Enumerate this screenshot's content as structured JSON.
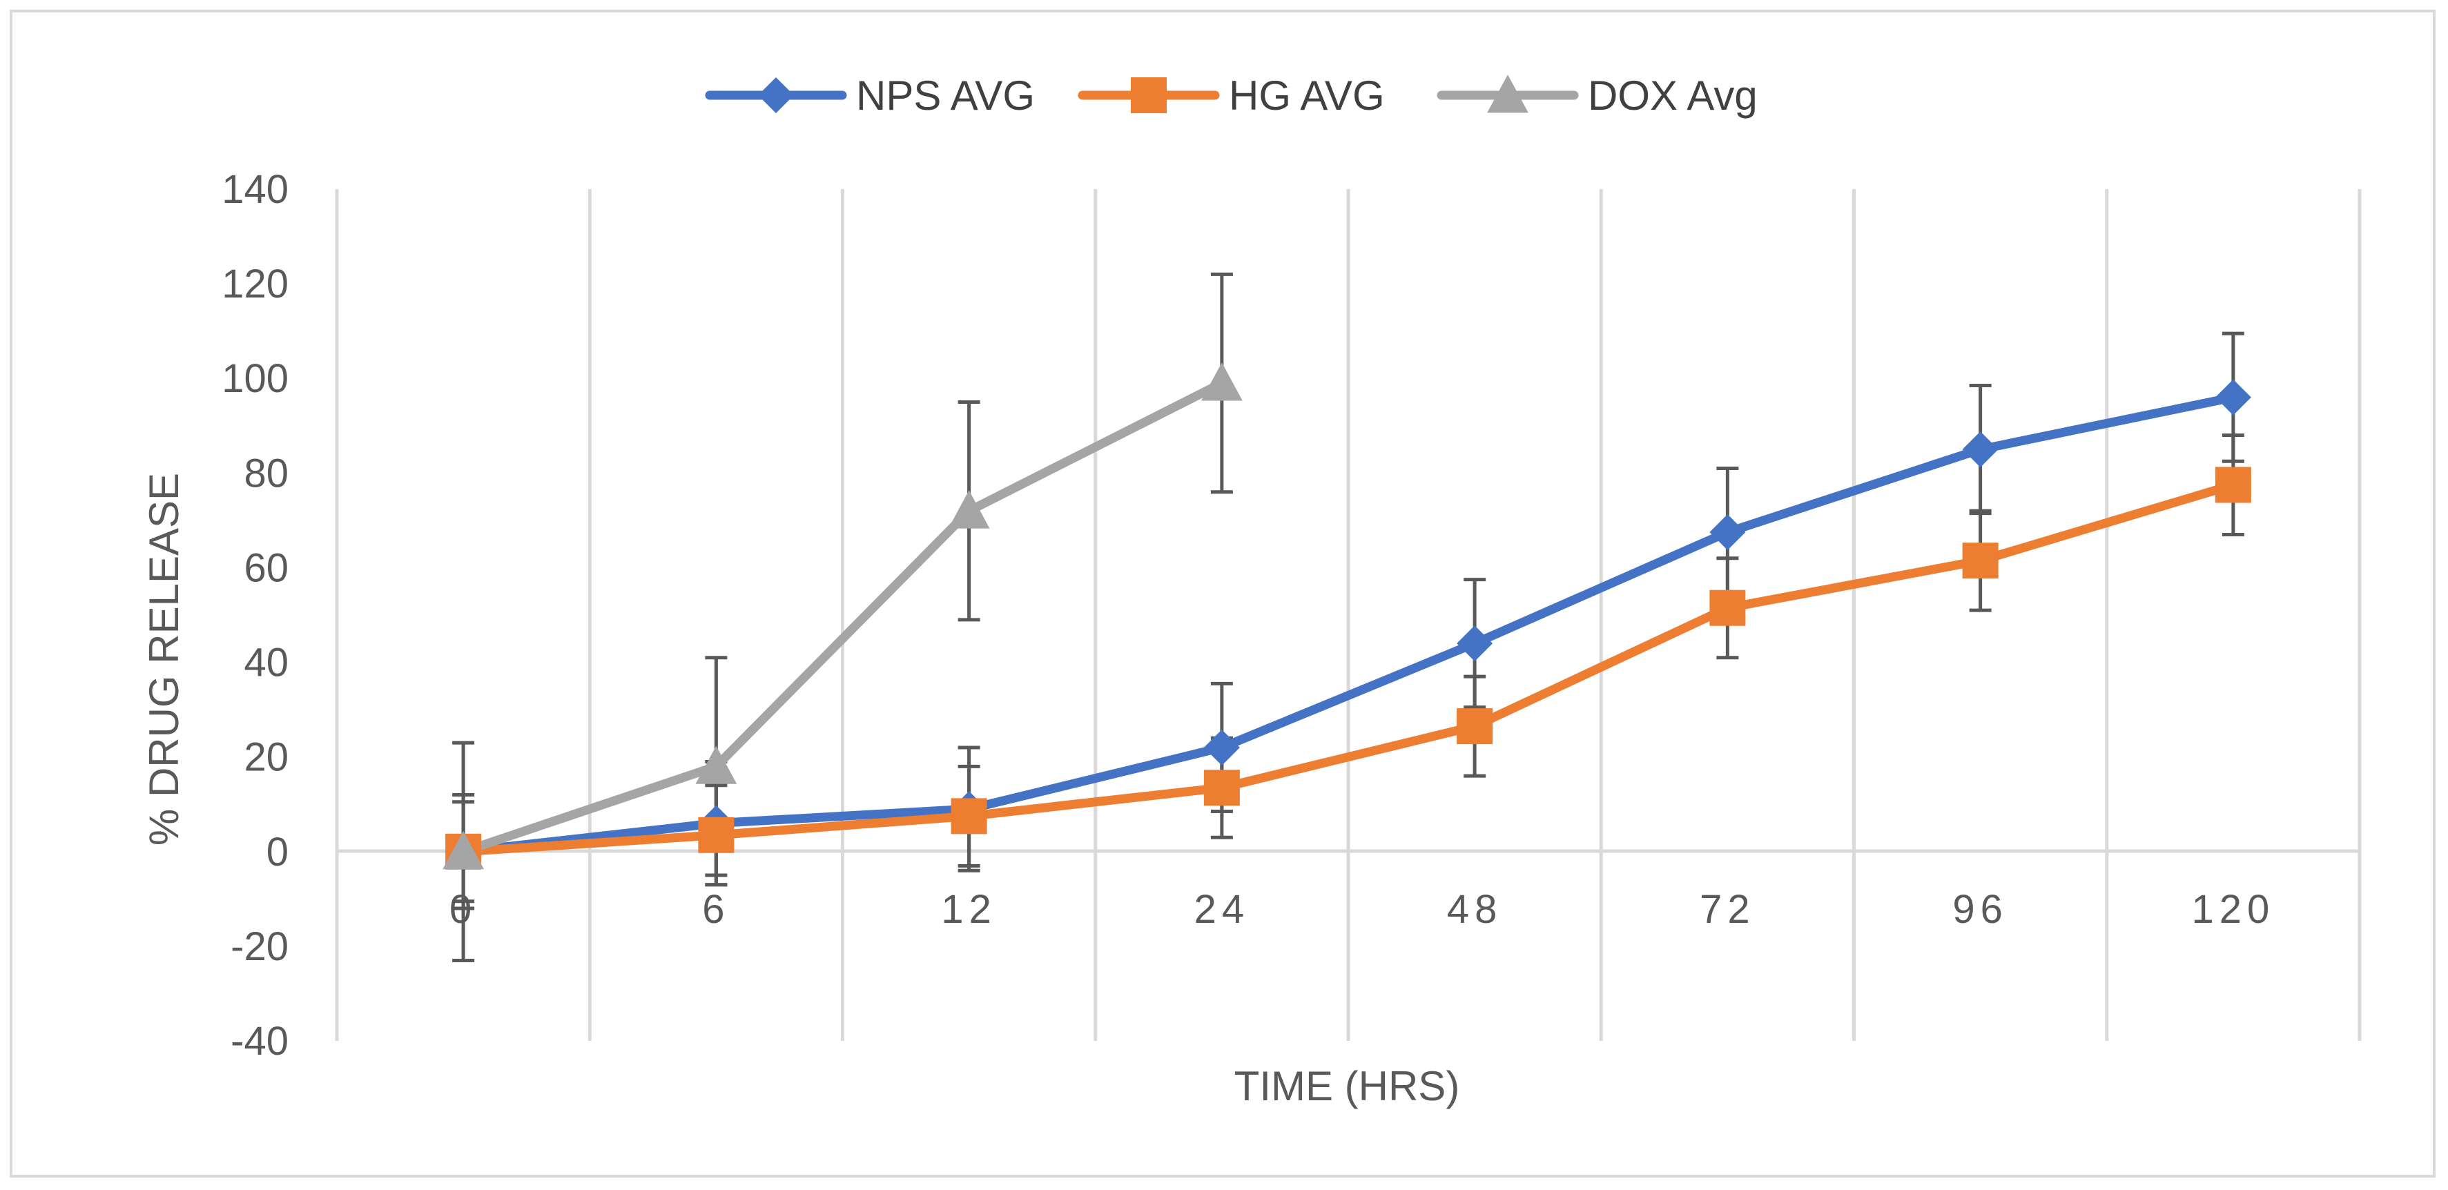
{
  "chart_data": {
    "type": "line",
    "title": "",
    "xlabel": "TIME (HRS)",
    "ylabel": "% DRUG RELEASE",
    "categories": [
      "0",
      "6",
      "12",
      "24",
      "48",
      "72",
      "96",
      "120"
    ],
    "ylim": [
      -40,
      140
    ],
    "yticks": [
      -40,
      -20,
      0,
      20,
      40,
      60,
      80,
      100,
      120,
      140
    ],
    "grid": "vertical",
    "legend_position": "top",
    "series": [
      {
        "name": "NPS AVG",
        "color": "#4472c4",
        "marker": "diamond",
        "values": [
          0,
          6,
          9,
          22,
          44,
          67.5,
          85,
          96
        ],
        "error": [
          12,
          13,
          13,
          13.5,
          13.5,
          13.5,
          13.5,
          13.5
        ]
      },
      {
        "name": "HG AVG",
        "color": "#ed7d31",
        "marker": "square",
        "values": [
          0,
          3.5,
          7.5,
          13.5,
          26.5,
          51.5,
          61.5,
          77.5
        ],
        "error": [
          10.5,
          10.5,
          10.5,
          10.5,
          10.5,
          10.5,
          10.5,
          10.5
        ]
      },
      {
        "name": "DOX Avg",
        "color": "#a5a5a5",
        "marker": "triangle",
        "values": [
          0,
          18,
          72,
          99,
          null,
          null,
          null,
          null
        ],
        "error": [
          23,
          23,
          23,
          23,
          null,
          null,
          null,
          null
        ]
      }
    ]
  }
}
